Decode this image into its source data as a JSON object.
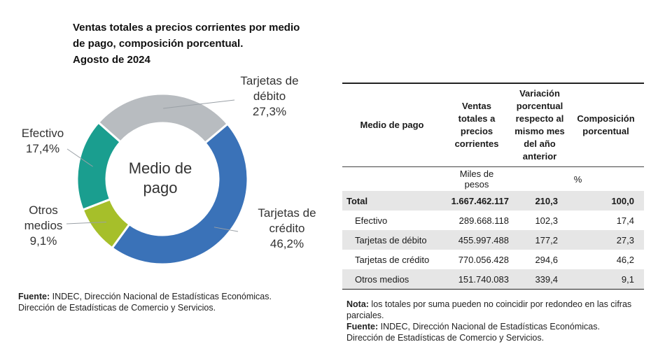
{
  "title": {
    "line1": "Ventas totales a precios corrientes por medio",
    "line2": "de pago, composición porcentual.",
    "line3": "Agosto de 2024"
  },
  "chart_data": {
    "type": "pie",
    "variant": "donut",
    "center_label_line1": "Medio de",
    "center_label_line2": "pago",
    "slices": [
      {
        "name_line1": "Tarjetas de",
        "name_line2": "débito",
        "value": 27.3,
        "value_label": "27,3%",
        "color": "#b8bcc0"
      },
      {
        "name_line1": "Tarjetas de",
        "name_line2": "crédito",
        "value": 46.2,
        "value_label": "46,2%",
        "color": "#3a72b8"
      },
      {
        "name_line1": "Otros",
        "name_line2": "medios",
        "value": 9.1,
        "value_label": "9,1%",
        "color": "#a6bf2a"
      },
      {
        "name_line1": "Efectivo",
        "name_line2": "",
        "value": 17.4,
        "value_label": "17,4%",
        "color": "#1a9e8f"
      }
    ]
  },
  "source_left": {
    "label": "Fuente:",
    "line1": " INDEC, Dirección Nacional de Estadísticas Económicas.",
    "line2": "Dirección de Estadísticas de Comercio y Servicios."
  },
  "table": {
    "headers": {
      "col0": "Medio de pago",
      "col1": "Ventas totales a precios corrientes",
      "col2": "Variación porcentual respecto al mismo mes del año anterior",
      "col3": "Composición porcentual"
    },
    "units": {
      "col1": "Miles de pesos",
      "col23": "%"
    },
    "rows": [
      {
        "label": "Total",
        "sales": "1.667.462.117",
        "variation": "210,3",
        "share": "100,0"
      },
      {
        "label": "Efectivo",
        "sales": "289.668.118",
        "variation": "102,3",
        "share": "17,4"
      },
      {
        "label": "Tarjetas de débito",
        "sales": "455.997.488",
        "variation": "177,2",
        "share": "27,3"
      },
      {
        "label": "Tarjetas de crédito",
        "sales": "770.056.428",
        "variation": "294,6",
        "share": "46,2"
      },
      {
        "label": "Otros medios",
        "sales": "151.740.083",
        "variation": "339,4",
        "share": "9,1"
      }
    ]
  },
  "notes": {
    "nota_label": "Nota:",
    "nota_text": " los totales por suma pueden no coincidir por redondeo en las cifras parciales.",
    "fuente_label": "Fuente:",
    "fuente_line1": " INDEC, Dirección Nacional de Estadísticas Económicas.",
    "fuente_line2": "Dirección de Estadísticas de Comercio y Servicios."
  }
}
